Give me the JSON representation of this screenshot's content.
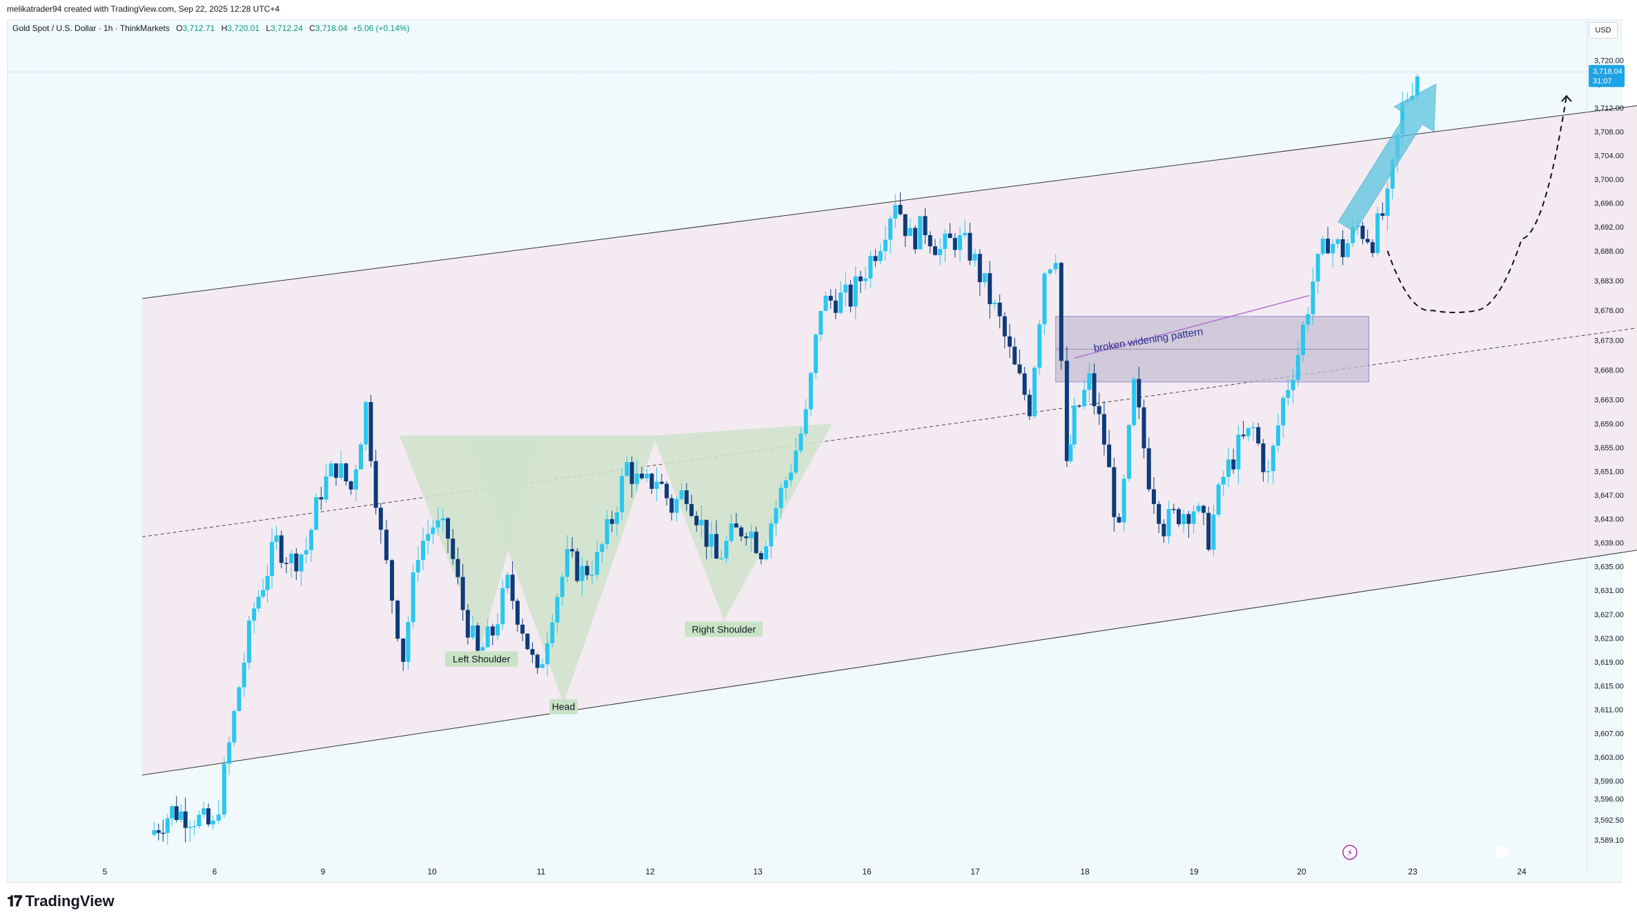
{
  "header": {
    "created_by": "melikatrader94 created with TradingView.com, Sep 22, 2025 12:28 UTC+4"
  },
  "legend": {
    "symbol": "Gold Spot / U.S. Dollar · 1h · ThinkMarkets",
    "o_label": "O",
    "o_value": "3,712.71",
    "h_label": "H",
    "h_value": "3,720.01",
    "l_label": "L",
    "l_value": "3,712.24",
    "c_label": "C",
    "c_value": "3,718.04",
    "change": "+5.06 (+0.14%)"
  },
  "currency": "USD",
  "last_price": {
    "value": "3,718.04",
    "countdown": "31:07"
  },
  "footer": {
    "brand": "TradingView"
  },
  "colors": {
    "up": "#29c7ef",
    "down": "#0d3b7a",
    "channel_fill": "#f3e9f0",
    "pattern_fill": "#cfe3cb",
    "box_fill": "#c5bfd3",
    "box_border": "#7b6ccf",
    "arrow": "#5cc4e0",
    "accent": "#2196f3"
  },
  "annotations": {
    "left_shoulder": "Left Shoulder",
    "head": "Head",
    "right_shoulder": "Right Shoulder",
    "broken_widening": "broken widening pattern"
  },
  "chart_data": {
    "type": "candlestick",
    "title": "Gold Spot / U.S. Dollar · 1h · ThinkMarkets",
    "ylim": [
      3586,
      3722
    ],
    "y_ticks": [
      3720.0,
      3716.0,
      3712.0,
      3708.0,
      3704.0,
      3700.0,
      3696.0,
      3692.0,
      3688.0,
      3683.0,
      3678.0,
      3673.0,
      3668.0,
      3663.0,
      3659.0,
      3655.0,
      3651.0,
      3647.0,
      3643.0,
      3639.0,
      3635.0,
      3631.0,
      3627.0,
      3623.0,
      3619.0,
      3615.0,
      3611.0,
      3607.0,
      3603.0,
      3599.0,
      3596.0,
      3592.5,
      3589.1
    ],
    "y_tick_labels": [
      "3,720.00",
      "3,716.00",
      "3,712.00",
      "3,708.00",
      "3,704.00",
      "3,700.00",
      "3,696.00",
      "3,692.00",
      "3,688.00",
      "3,683.00",
      "3,678.00",
      "3,673.00",
      "3,668.00",
      "3,663.00",
      "3,659.00",
      "3,655.00",
      "3,651.00",
      "3,647.00",
      "3,643.00",
      "3,639.00",
      "3,635.00",
      "3,631.00",
      "3,627.00",
      "3,623.00",
      "3,619.00",
      "3,615.00",
      "3,611.00",
      "3,607.00",
      "3,603.00",
      "3,599.00",
      "3,596.00",
      "3,592.50",
      "3,589.10"
    ],
    "x_ticks": [
      "5",
      "6",
      "9",
      "10",
      "11",
      "12",
      "13",
      "16",
      "17",
      "18",
      "19",
      "20",
      "23",
      "24"
    ],
    "path": [
      [
        5.6,
        3590
      ],
      [
        5.9,
        3594
      ],
      [
        6.2,
        3593
      ],
      [
        6.45,
        3591
      ],
      [
        6.6,
        3600
      ],
      [
        6.8,
        3615
      ],
      [
        7.0,
        3628
      ],
      [
        7.3,
        3639
      ],
      [
        7.5,
        3636
      ],
      [
        7.7,
        3638
      ],
      [
        7.9,
        3648
      ],
      [
        8.1,
        3652
      ],
      [
        8.3,
        3648
      ],
      [
        8.5,
        3662
      ],
      [
        8.7,
        3640
      ],
      [
        8.85,
        3630
      ],
      [
        9.0,
        3620
      ],
      [
        9.2,
        3638
      ],
      [
        9.4,
        3642
      ],
      [
        9.6,
        3640
      ],
      [
        9.8,
        3628
      ],
      [
        10.0,
        3620
      ],
      [
        10.2,
        3624
      ],
      [
        10.4,
        3632
      ],
      [
        10.6,
        3625
      ],
      [
        10.8,
        3616
      ],
      [
        11.0,
        3628
      ],
      [
        11.2,
        3636
      ],
      [
        11.4,
        3634
      ],
      [
        11.6,
        3636
      ],
      [
        11.8,
        3643
      ],
      [
        12.0,
        3652
      ],
      [
        12.2,
        3648
      ],
      [
        12.4,
        3650
      ],
      [
        12.6,
        3645
      ],
      [
        12.8,
        3648
      ],
      [
        13.0,
        3642
      ],
      [
        13.2,
        3636
      ],
      [
        13.4,
        3640
      ],
      [
        13.6,
        3642
      ],
      [
        13.8,
        3638
      ],
      [
        14.0,
        3645
      ],
      [
        14.2,
        3652
      ],
      [
        14.4,
        3660
      ],
      [
        14.6,
        3679
      ],
      [
        14.8,
        3680
      ],
      [
        15.0,
        3680
      ],
      [
        15.2,
        3685
      ],
      [
        15.4,
        3690
      ],
      [
        15.6,
        3697
      ],
      [
        15.8,
        3690
      ],
      [
        16.0,
        3692
      ],
      [
        16.2,
        3688
      ],
      [
        16.4,
        3690
      ],
      [
        16.6,
        3688
      ],
      [
        16.8,
        3682
      ],
      [
        17.0,
        3676
      ],
      [
        17.2,
        3668
      ],
      [
        17.4,
        3662
      ],
      [
        17.6,
        3685
      ],
      [
        17.75,
        3688
      ],
      [
        17.9,
        3651
      ],
      [
        18.0,
        3660
      ],
      [
        18.2,
        3666
      ],
      [
        18.4,
        3656
      ],
      [
        18.6,
        3640
      ],
      [
        18.8,
        3665
      ],
      [
        19.0,
        3650
      ],
      [
        19.2,
        3642
      ],
      [
        19.4,
        3644
      ],
      [
        19.6,
        3645
      ],
      [
        19.8,
        3640
      ],
      [
        20.0,
        3650
      ],
      [
        20.2,
        3655
      ],
      [
        20.4,
        3658
      ],
      [
        20.6,
        3650
      ],
      [
        20.8,
        3663
      ],
      [
        21.0,
        3671
      ],
      [
        21.2,
        3683
      ],
      [
        21.4,
        3690
      ],
      [
        21.6,
        3688
      ],
      [
        21.8,
        3692
      ],
      [
        22.0,
        3690
      ],
      [
        22.2,
        3696
      ],
      [
        22.4,
        3712
      ],
      [
        22.6,
        3718
      ]
    ],
    "channel": {
      "upper": [
        [
          5.5,
          3680
        ],
        [
          27.8,
          3716
        ]
      ],
      "lower": [
        [
          5.5,
          3600
        ],
        [
          27.8,
          3642
        ]
      ],
      "median": [
        [
          5.5,
          3640
        ],
        [
          27.8,
          3679
        ]
      ]
    },
    "projection": [
      [
        22.2,
        3688
      ],
      [
        22.8,
        3678
      ],
      [
        23.4,
        3678
      ],
      [
        24.0,
        3690
      ],
      [
        24.6,
        3714
      ]
    ],
    "resistance_zone": [
      3666,
      3677
    ],
    "last_price": 3718.04,
    "grid": false,
    "legend": "top-left"
  }
}
